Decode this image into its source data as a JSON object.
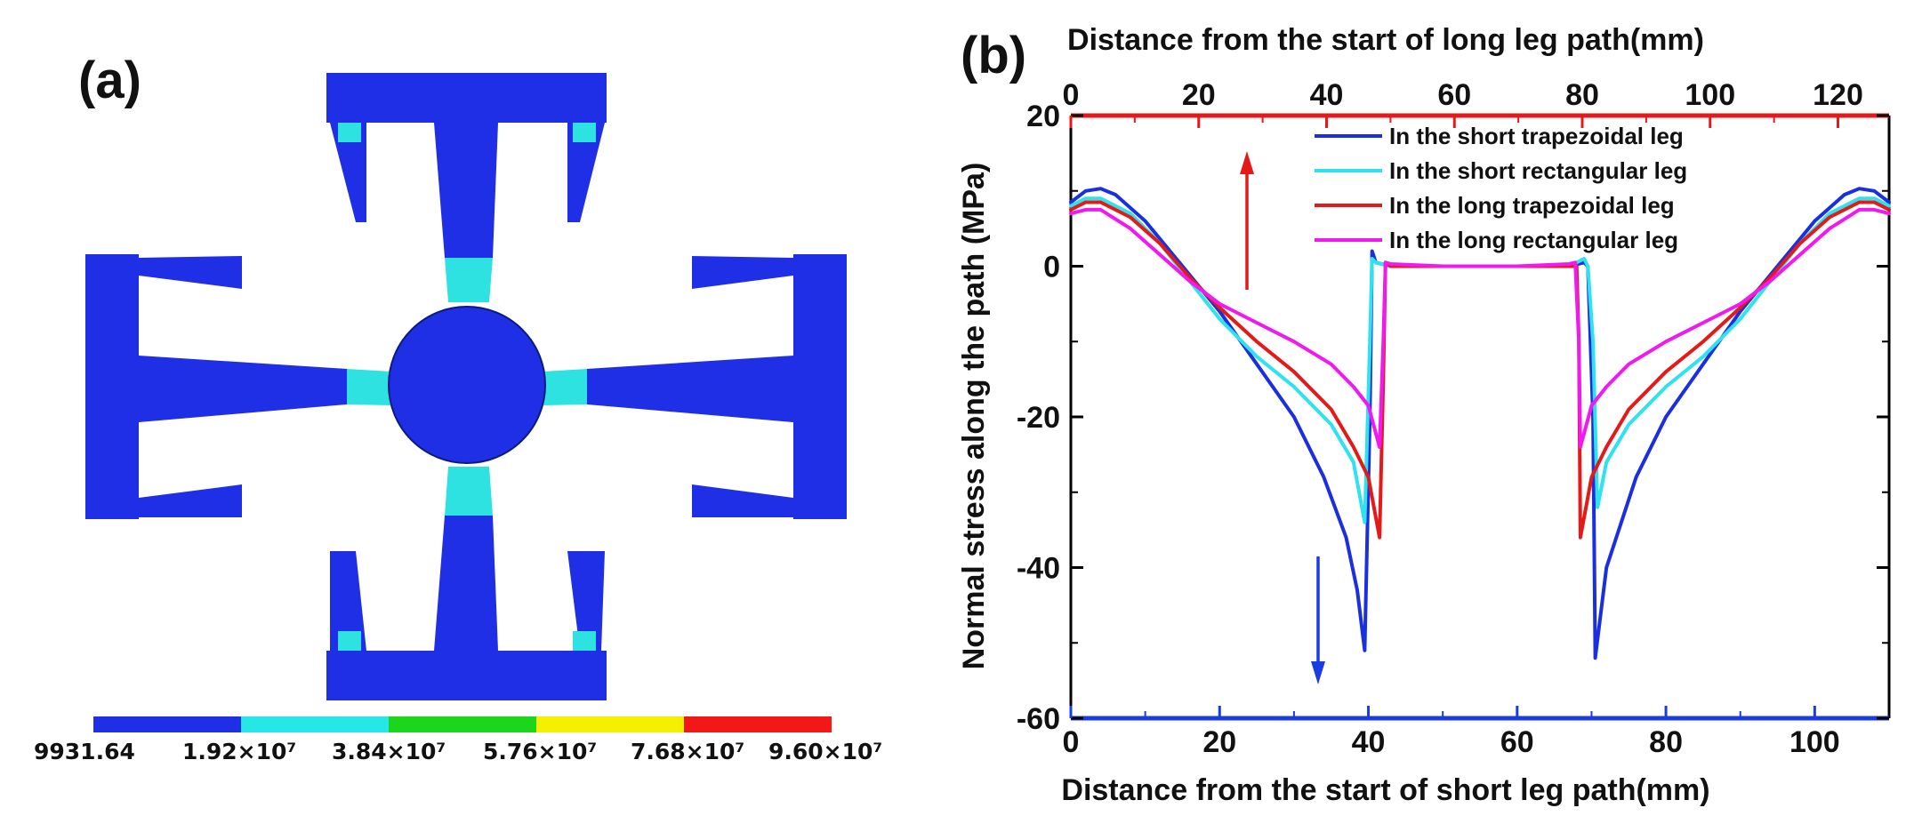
{
  "panel_a": {
    "label": "(a)",
    "contour_colors": [
      "#1f2fe6",
      "#26e6e6",
      "#1bd61b",
      "#f5f000",
      "#f21818"
    ],
    "body_color": "#1f2fe6",
    "stress_color": "#2ee2e2",
    "scale_labels": [
      "9931.64",
      "1.92×10⁷",
      "3.84×10⁷",
      "5.76×10⁷",
      "7.68×10⁷",
      "9.60×10⁷"
    ]
  },
  "panel_b": {
    "label": "(b)",
    "arrow_up_color": "#e41a1a",
    "arrow_down_color": "#1a3ce0"
  },
  "chart_data": {
    "type": "line",
    "title": "",
    "xlabel": "Distance from the start of short leg path(mm)",
    "x2label": "Distance from the start of long leg path(mm)",
    "ylabel": "Normal stress along the path (MPa)",
    "xlim": [
      0,
      110
    ],
    "x2lim": [
      0,
      128
    ],
    "ylim": [
      -60,
      20
    ],
    "xticks": [
      0,
      20,
      40,
      60,
      80,
      100
    ],
    "x2ticks": [
      0,
      20,
      40,
      60,
      80,
      100,
      120
    ],
    "yticks": [
      -60,
      -40,
      -20,
      0,
      20
    ],
    "bottom_axis_color": "#1a3ce0",
    "top_axis_color": "#e41a1a",
    "legend_position": "top-right",
    "series": [
      {
        "name": "In the short trapezoidal leg",
        "color": "#1a2fe0",
        "points": [
          [
            0,
            8.5
          ],
          [
            2,
            10
          ],
          [
            4,
            10.3
          ],
          [
            6,
            9.5
          ],
          [
            10,
            6
          ],
          [
            15,
            0
          ],
          [
            20,
            -6
          ],
          [
            25,
            -13
          ],
          [
            30,
            -20
          ],
          [
            34,
            -28
          ],
          [
            37,
            -36
          ],
          [
            38.5,
            -43
          ],
          [
            39.5,
            -51
          ],
          [
            40.2,
            -20
          ],
          [
            40.5,
            2
          ],
          [
            41,
            0.5
          ],
          [
            43,
            0
          ],
          [
            50,
            0
          ],
          [
            60,
            0
          ],
          [
            67,
            0
          ],
          [
            69,
            0.5
          ],
          [
            69.5,
            0
          ],
          [
            70.2,
            -20
          ],
          [
            70.5,
            -52
          ],
          [
            72,
            -40
          ],
          [
            76,
            -28
          ],
          [
            80,
            -20
          ],
          [
            85,
            -13
          ],
          [
            90,
            -6
          ],
          [
            95,
            0
          ],
          [
            100,
            6
          ],
          [
            104,
            9.5
          ],
          [
            106,
            10.3
          ],
          [
            108,
            10
          ],
          [
            110,
            8.5
          ]
        ]
      },
      {
        "name": "In the short rectangular leg",
        "color": "#2ee2ee",
        "points": [
          [
            0,
            8
          ],
          [
            2,
            9
          ],
          [
            4,
            9
          ],
          [
            8,
            7
          ],
          [
            12,
            3
          ],
          [
            16,
            -2
          ],
          [
            20,
            -7
          ],
          [
            25,
            -12
          ],
          [
            30,
            -16
          ],
          [
            35,
            -21
          ],
          [
            38,
            -26
          ],
          [
            39.5,
            -34
          ],
          [
            40.2,
            -10
          ],
          [
            40.5,
            1
          ],
          [
            41,
            0.5
          ],
          [
            43,
            0
          ],
          [
            50,
            0
          ],
          [
            60,
            0
          ],
          [
            67,
            0
          ],
          [
            69,
            1
          ],
          [
            69.5,
            0
          ],
          [
            70.2,
            -10
          ],
          [
            70.8,
            -32
          ],
          [
            72,
            -26
          ],
          [
            75,
            -21
          ],
          [
            80,
            -16
          ],
          [
            85,
            -12
          ],
          [
            90,
            -7
          ],
          [
            94,
            -2
          ],
          [
            98,
            3
          ],
          [
            102,
            7
          ],
          [
            106,
            9
          ],
          [
            108,
            9
          ],
          [
            110,
            8
          ]
        ]
      },
      {
        "name": "In the long trapezoidal leg",
        "color": "#e41a1a",
        "points": [
          [
            0,
            7.5
          ],
          [
            2,
            8.5
          ],
          [
            4,
            8.5
          ],
          [
            8,
            6.5
          ],
          [
            12,
            3
          ],
          [
            16,
            -1.5
          ],
          [
            20,
            -5.5
          ],
          [
            25,
            -10
          ],
          [
            30,
            -14
          ],
          [
            35,
            -19
          ],
          [
            38,
            -24
          ],
          [
            40,
            -28
          ],
          [
            41.5,
            -36
          ],
          [
            42,
            -15
          ],
          [
            42.3,
            0.5
          ],
          [
            43,
            0
          ],
          [
            50,
            0
          ],
          [
            60,
            0
          ],
          [
            67,
            0
          ],
          [
            68,
            0
          ],
          [
            68.3,
            -10
          ],
          [
            68.5,
            -36
          ],
          [
            70,
            -28
          ],
          [
            72,
            -24
          ],
          [
            75,
            -19
          ],
          [
            80,
            -14
          ],
          [
            85,
            -10
          ],
          [
            90,
            -5.5
          ],
          [
            94,
            -1.5
          ],
          [
            98,
            3
          ],
          [
            102,
            6.5
          ],
          [
            106,
            8.5
          ],
          [
            108,
            8.5
          ],
          [
            110,
            7.5
          ]
        ]
      },
      {
        "name": "In the long rectangular leg",
        "color": "#f01af0",
        "points": [
          [
            0,
            7
          ],
          [
            2,
            7.5
          ],
          [
            4,
            7.5
          ],
          [
            8,
            5
          ],
          [
            12,
            1.5
          ],
          [
            16,
            -2
          ],
          [
            20,
            -5
          ],
          [
            25,
            -7.5
          ],
          [
            30,
            -10
          ],
          [
            35,
            -13
          ],
          [
            38,
            -16
          ],
          [
            40,
            -18.5
          ],
          [
            41.5,
            -24
          ],
          [
            42,
            -10
          ],
          [
            42.3,
            0.5
          ],
          [
            43,
            0.3
          ],
          [
            50,
            0
          ],
          [
            60,
            0
          ],
          [
            67,
            0.3
          ],
          [
            67.8,
            0.5
          ],
          [
            68.3,
            -10
          ],
          [
            68.5,
            -24
          ],
          [
            70,
            -18.5
          ],
          [
            72,
            -16
          ],
          [
            75,
            -13
          ],
          [
            80,
            -10
          ],
          [
            85,
            -7.5
          ],
          [
            90,
            -5
          ],
          [
            94,
            -2
          ],
          [
            98,
            1.5
          ],
          [
            102,
            5
          ],
          [
            106,
            7.5
          ],
          [
            108,
            7.5
          ],
          [
            110,
            7
          ]
        ]
      }
    ]
  }
}
